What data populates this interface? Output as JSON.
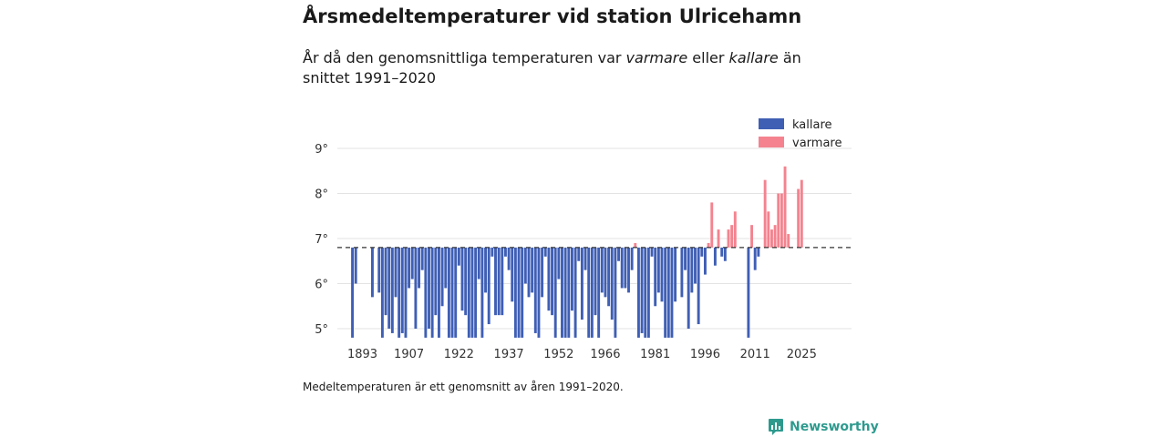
{
  "header": {
    "title": "Årsmedeltemperaturer vid station Ulricehamn",
    "subtitle_pre": "År då den genomsnittliga temperaturen var ",
    "subtitle_warm": "varmare",
    "subtitle_mid": " eller ",
    "subtitle_cold": "kallare",
    "subtitle_post": " än snittet 1991–2020"
  },
  "footnote": "Medeltemperaturen är ett genomsnitt av åren 1991–2020.",
  "brand": {
    "name": "Newsworthy",
    "icon": "newsworthy-logo-icon"
  },
  "colors": {
    "cold": "#3f5fb5",
    "warm": "#f4838f",
    "grid": "#e3e3e3",
    "baseline": "#333333"
  },
  "chart_data": {
    "type": "bar",
    "title": "Årsmedeltemperaturer vid station Ulricehamn",
    "xlabel": "",
    "ylabel": "",
    "baseline": 6.8,
    "ylim": [
      4.75,
      9.2
    ],
    "yticks": [
      5,
      6,
      7,
      8,
      9
    ],
    "ytick_labels": [
      "5°",
      "6°",
      "7°",
      "8°",
      "9°"
    ],
    "xticks": [
      1893,
      1907,
      1922,
      1937,
      1952,
      1966,
      1981,
      1996,
      2011,
      2025
    ],
    "xlim": [
      1889.5,
      2032.5
    ],
    "legend": {
      "position": "top-right",
      "entries": [
        {
          "name": "kallare",
          "color": "#3f5fb5"
        },
        {
          "name": "varmare",
          "color": "#f4838f"
        }
      ]
    },
    "series": [
      {
        "name": "kallare",
        "color": "#3f5fb5",
        "points": [
          [
            1890,
            4.8
          ],
          [
            1891,
            6.0
          ],
          [
            1896,
            5.7
          ],
          [
            1898,
            5.8
          ],
          [
            1899,
            4.8
          ],
          [
            1900,
            5.3
          ],
          [
            1901,
            5.0
          ],
          [
            1902,
            4.9
          ],
          [
            1903,
            5.7
          ],
          [
            1904,
            4.8
          ],
          [
            1905,
            4.9
          ],
          [
            1906,
            4.8
          ],
          [
            1907,
            5.9
          ],
          [
            1908,
            6.1
          ],
          [
            1909,
            5.0
          ],
          [
            1910,
            5.9
          ],
          [
            1911,
            6.3
          ],
          [
            1912,
            4.8
          ],
          [
            1913,
            5.0
          ],
          [
            1914,
            4.8
          ],
          [
            1915,
            5.3
          ],
          [
            1916,
            4.8
          ],
          [
            1917,
            5.5
          ],
          [
            1918,
            5.9
          ],
          [
            1919,
            4.8
          ],
          [
            1920,
            4.8
          ],
          [
            1921,
            4.8
          ],
          [
            1922,
            6.4
          ],
          [
            1923,
            5.4
          ],
          [
            1924,
            5.3
          ],
          [
            1925,
            4.8
          ],
          [
            1926,
            4.8
          ],
          [
            1927,
            4.8
          ],
          [
            1928,
            6.1
          ],
          [
            1929,
            4.8
          ],
          [
            1930,
            5.8
          ],
          [
            1931,
            5.1
          ],
          [
            1932,
            6.6
          ],
          [
            1933,
            5.3
          ],
          [
            1934,
            5.3
          ],
          [
            1935,
            5.3
          ],
          [
            1936,
            6.6
          ],
          [
            1937,
            6.3
          ],
          [
            1938,
            5.6
          ],
          [
            1939,
            4.8
          ],
          [
            1940,
            4.8
          ],
          [
            1941,
            4.8
          ],
          [
            1942,
            6.0
          ],
          [
            1943,
            5.7
          ],
          [
            1944,
            5.8
          ],
          [
            1945,
            4.9
          ],
          [
            1946,
            4.8
          ],
          [
            1947,
            5.7
          ],
          [
            1948,
            6.6
          ],
          [
            1949,
            5.4
          ],
          [
            1950,
            5.3
          ],
          [
            1951,
            4.8
          ],
          [
            1952,
            6.1
          ],
          [
            1953,
            4.8
          ],
          [
            1954,
            4.8
          ],
          [
            1955,
            4.8
          ],
          [
            1956,
            5.4
          ],
          [
            1957,
            4.8
          ],
          [
            1958,
            6.5
          ],
          [
            1959,
            5.2
          ],
          [
            1960,
            6.3
          ],
          [
            1961,
            4.8
          ],
          [
            1962,
            4.8
          ],
          [
            1963,
            5.3
          ],
          [
            1964,
            4.8
          ],
          [
            1965,
            5.8
          ],
          [
            1966,
            5.7
          ],
          [
            1967,
            5.5
          ],
          [
            1968,
            5.2
          ],
          [
            1969,
            4.8
          ],
          [
            1970,
            6.5
          ],
          [
            1971,
            5.9
          ],
          [
            1972,
            5.9
          ],
          [
            1973,
            5.8
          ],
          [
            1974,
            6.3
          ],
          [
            1976,
            4.8
          ],
          [
            1977,
            4.9
          ],
          [
            1978,
            4.8
          ],
          [
            1979,
            4.8
          ],
          [
            1980,
            6.6
          ],
          [
            1981,
            5.5
          ],
          [
            1982,
            5.8
          ],
          [
            1983,
            5.6
          ],
          [
            1984,
            4.8
          ],
          [
            1985,
            4.8
          ],
          [
            1986,
            4.8
          ],
          [
            1987,
            5.6
          ],
          [
            1989,
            5.7
          ],
          [
            1990,
            6.3
          ],
          [
            1991,
            5.0
          ],
          [
            1992,
            5.8
          ],
          [
            1993,
            6.0
          ],
          [
            1994,
            5.1
          ],
          [
            1995,
            6.6
          ],
          [
            1996,
            6.2
          ],
          [
            1999,
            6.4
          ],
          [
            2001,
            6.6
          ],
          [
            2002,
            6.5
          ],
          [
            2009,
            4.8
          ],
          [
            2011,
            6.3
          ],
          [
            2012,
            6.6
          ]
        ]
      },
      {
        "name": "varmare",
        "color": "#f4838f",
        "points": [
          [
            1975,
            6.9
          ],
          [
            1997,
            6.9
          ],
          [
            1998,
            7.8
          ],
          [
            2000,
            7.2
          ],
          [
            2003,
            7.2
          ],
          [
            2004,
            7.3
          ],
          [
            2005,
            7.6
          ],
          [
            2010,
            7.3
          ],
          [
            2014,
            8.3
          ],
          [
            2015,
            7.6
          ],
          [
            2016,
            7.2
          ],
          [
            2017,
            7.3
          ],
          [
            2018,
            8.0
          ],
          [
            2019,
            8.0
          ],
          [
            2020,
            8.6
          ],
          [
            2021,
            7.1
          ],
          [
            2024,
            8.1
          ],
          [
            2025,
            8.3
          ]
        ]
      }
    ]
  }
}
